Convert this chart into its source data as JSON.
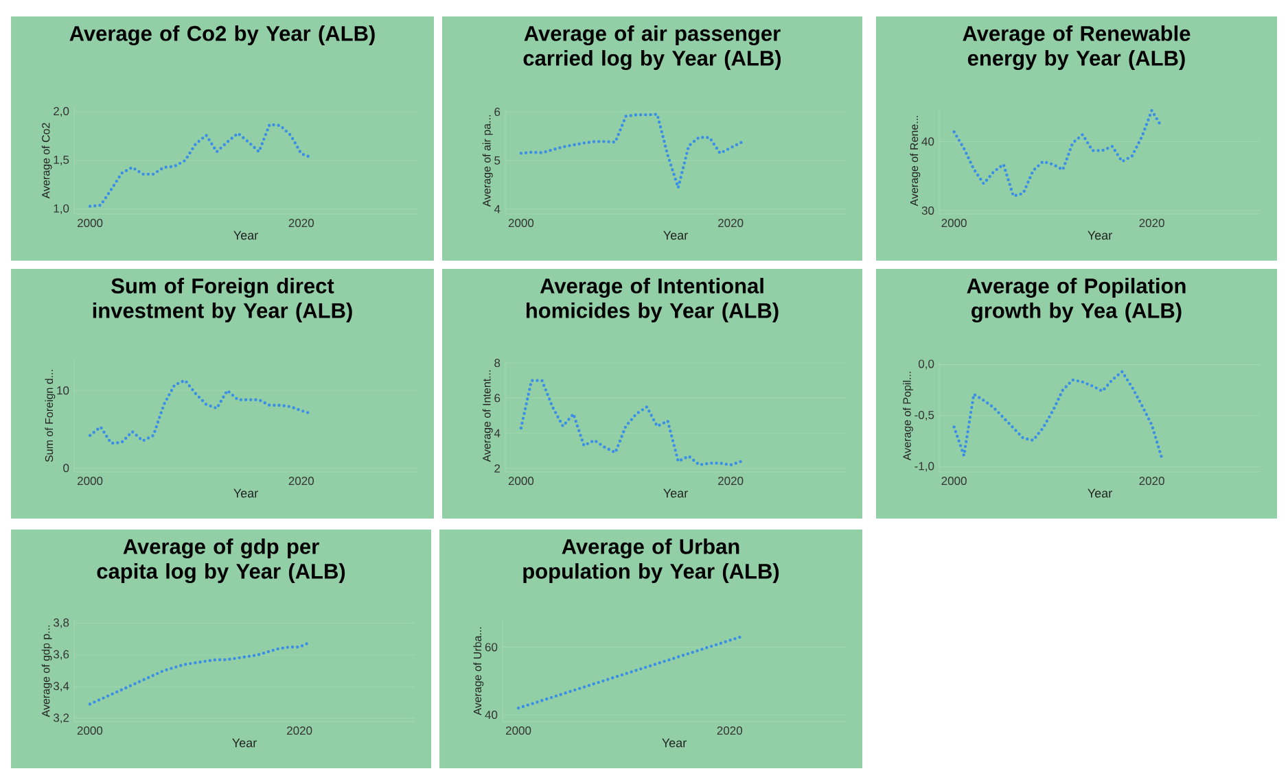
{
  "chart_data": [
    {
      "type": "line",
      "title": "Average of Co2 by Year (ALB)",
      "xlabel": "Year",
      "ylabel": "Average of Co2",
      "color": "#3a8ee6",
      "line_style": "dotted",
      "grid": "y",
      "xlim": [
        1998.5,
        2031
      ],
      "xticks": [
        2000,
        2020
      ],
      "ylim": [
        0.95,
        2.05
      ],
      "yticks": [
        {
          "value": 1.0,
          "label": "1,0"
        },
        {
          "value": 1.5,
          "label": "1,5"
        },
        {
          "value": 2.0,
          "label": "2,0"
        }
      ],
      "x": [
        2000,
        2001,
        2002,
        2003,
        2004,
        2005,
        2006,
        2007,
        2008,
        2009,
        2010,
        2011,
        2012,
        2013,
        2014,
        2015,
        2016,
        2017,
        2018,
        2019,
        2020,
        2021
      ],
      "values": [
        1.03,
        1.04,
        1.2,
        1.37,
        1.43,
        1.36,
        1.36,
        1.43,
        1.44,
        1.5,
        1.67,
        1.76,
        1.59,
        1.69,
        1.78,
        1.69,
        1.59,
        1.87,
        1.86,
        1.76,
        1.57,
        1.53
      ]
    },
    {
      "type": "line",
      "title": "Average of air passenger carried log by Year (ALB)",
      "xlabel": "Year",
      "ylabel": "Average of air pa...",
      "color": "#3a8ee6",
      "line_style": "dotted",
      "grid": "y",
      "xlim": [
        1998.5,
        2031
      ],
      "xticks": [
        2000,
        2020
      ],
      "ylim": [
        3.9,
        6.1
      ],
      "yticks": [
        4,
        5,
        6
      ],
      "x": [
        2000,
        2001,
        2002,
        2003,
        2004,
        2005,
        2006,
        2007,
        2008,
        2009,
        2010,
        2011,
        2012,
        2013,
        2014,
        2015,
        2016,
        2017,
        2018,
        2019,
        2020,
        2021
      ],
      "values": [
        5.15,
        5.17,
        5.16,
        5.22,
        5.28,
        5.32,
        5.36,
        5.39,
        5.39,
        5.38,
        5.91,
        5.94,
        5.94,
        5.95,
        5.11,
        4.44,
        5.3,
        5.48,
        5.47,
        5.15,
        5.26,
        5.37
      ]
    },
    {
      "type": "line",
      "title": "Average of Renewable energy by Year (ALB)",
      "xlabel": "Year",
      "ylabel": "Average of Rene...",
      "color": "#3a8ee6",
      "line_style": "dotted",
      "grid": "y",
      "xlim": [
        1998.5,
        2031
      ],
      "xticks": [
        2000,
        2020
      ],
      "ylim": [
        29.5,
        45
      ],
      "yticks": [
        30,
        40
      ],
      "x": [
        2000,
        2001,
        2002,
        2003,
        2004,
        2005,
        2006,
        2007,
        2008,
        2009,
        2010,
        2011,
        2012,
        2013,
        2014,
        2015,
        2016,
        2017,
        2018,
        2019,
        2020,
        2021
      ],
      "values": [
        41.4,
        39.0,
        36.0,
        33.9,
        35.6,
        36.7,
        32.1,
        32.5,
        35.8,
        37.1,
        36.7,
        35.9,
        39.8,
        41.0,
        38.7,
        38.7,
        39.3,
        37.1,
        37.9,
        40.7,
        44.5,
        42.1
      ]
    },
    {
      "type": "line",
      "title": "Sum of Foreign direct investment by Year (ALB)",
      "xlabel": "Year",
      "ylabel": "Sum of Foreign d...",
      "color": "#3a8ee6",
      "line_style": "dotted",
      "grid": "y",
      "xlim": [
        1998.5,
        2031
      ],
      "xticks": [
        2000,
        2020
      ],
      "ylim": [
        -0.5,
        14
      ],
      "yticks": [
        0,
        10
      ],
      "x": [
        2000,
        2001,
        2002,
        2003,
        2004,
        2005,
        2006,
        2007,
        2008,
        2009,
        2010,
        2011,
        2012,
        2013,
        2014,
        2015,
        2016,
        2017,
        2018,
        2019,
        2020,
        2021
      ],
      "values": [
        4.2,
        5.3,
        3.2,
        3.3,
        4.7,
        3.5,
        4.2,
        8.2,
        10.7,
        11.3,
        9.6,
        8.2,
        7.7,
        10.0,
        8.8,
        8.8,
        8.8,
        8.1,
        8.1,
        7.9,
        7.4,
        7.0
      ]
    },
    {
      "type": "line",
      "title": "Average of Intentional homicides by Year (ALB)",
      "xlabel": "Year",
      "ylabel": "Average of Intent...",
      "color": "#3a8ee6",
      "line_style": "dotted",
      "grid": "y",
      "xlim": [
        1998.5,
        2031
      ],
      "xticks": [
        2000,
        2020
      ],
      "ylim": [
        1.8,
        8.2
      ],
      "yticks": [
        2,
        4,
        6,
        8
      ],
      "x": [
        2000,
        2001,
        2002,
        2003,
        2004,
        2005,
        2006,
        2007,
        2008,
        2009,
        2010,
        2011,
        2012,
        2013,
        2014,
        2015,
        2016,
        2017,
        2018,
        2019,
        2020,
        2021
      ],
      "values": [
        4.3,
        7.0,
        7.0,
        5.5,
        4.4,
        5.1,
        3.3,
        3.6,
        3.2,
        2.9,
        4.4,
        5.1,
        5.5,
        4.4,
        4.7,
        2.4,
        2.7,
        2.2,
        2.3,
        2.3,
        2.2,
        2.4
      ]
    },
    {
      "type": "line",
      "title": "Average of Popilation growth by Yea (ALB)",
      "xlabel": "Year",
      "ylabel": "Average of Popil...",
      "color": "#3a8ee6",
      "line_style": "dotted",
      "grid": "y",
      "xlim": [
        1998.5,
        2031
      ],
      "xticks": [
        2000,
        2020
      ],
      "ylim": [
        -1.05,
        0.05
      ],
      "yticks": [
        {
          "value": -1.0,
          "label": "-1,0"
        },
        {
          "value": -0.5,
          "label": "-0,5"
        },
        {
          "value": 0.0,
          "label": "0,0"
        }
      ],
      "x": [
        2000,
        2001,
        2002,
        2003,
        2004,
        2005,
        2006,
        2007,
        2008,
        2009,
        2010,
        2011,
        2012,
        2013,
        2014,
        2015,
        2016,
        2017,
        2018,
        2019,
        2020,
        2021
      ],
      "values": [
        -0.61,
        -0.89,
        -0.29,
        -0.35,
        -0.42,
        -0.52,
        -0.62,
        -0.72,
        -0.74,
        -0.62,
        -0.45,
        -0.25,
        -0.15,
        -0.17,
        -0.21,
        -0.26,
        -0.15,
        -0.07,
        -0.22,
        -0.4,
        -0.59,
        -0.91
      ]
    },
    {
      "type": "line",
      "title": "Average of gdp per capita log by Year (ALB)",
      "xlabel": "Year",
      "ylabel": "Average of gdp p...",
      "color": "#3a8ee6",
      "line_style": "dotted",
      "grid": "y",
      "xlim": [
        1998.5,
        2031
      ],
      "xticks": [
        2000,
        2020
      ],
      "ylim": [
        3.18,
        3.82
      ],
      "yticks": [
        {
          "value": 3.2,
          "label": "3,2"
        },
        {
          "value": 3.4,
          "label": "3,4"
        },
        {
          "value": 3.6,
          "label": "3,6"
        },
        {
          "value": 3.8,
          "label": "3,8"
        }
      ],
      "x": [
        2000,
        2001,
        2002,
        2003,
        2004,
        2005,
        2006,
        2007,
        2008,
        2009,
        2010,
        2011,
        2012,
        2013,
        2014,
        2015,
        2016,
        2017,
        2018,
        2019,
        2020,
        2021
      ],
      "values": [
        3.29,
        3.32,
        3.35,
        3.38,
        3.41,
        3.44,
        3.47,
        3.5,
        3.52,
        3.54,
        3.55,
        3.56,
        3.57,
        3.57,
        3.58,
        3.59,
        3.6,
        3.62,
        3.64,
        3.65,
        3.65,
        3.68
      ]
    },
    {
      "type": "line",
      "title": "Average of Urban population by Year (ALB)",
      "xlabel": "Year",
      "ylabel": "Average of Urba...",
      "color": "#3a8ee6",
      "line_style": "dotted",
      "grid": "y",
      "xlim": [
        1998.5,
        2031
      ],
      "xticks": [
        2000,
        2020
      ],
      "ylim": [
        38,
        68
      ],
      "yticks": [
        40,
        60
      ],
      "x": [
        2000,
        2001,
        2002,
        2003,
        2004,
        2005,
        2006,
        2007,
        2008,
        2009,
        2010,
        2011,
        2012,
        2013,
        2014,
        2015,
        2016,
        2017,
        2018,
        2019,
        2020,
        2021
      ],
      "values": [
        42,
        43,
        44,
        45,
        46,
        47,
        48,
        49,
        50,
        51,
        52,
        53,
        54,
        55,
        56,
        57,
        58,
        59,
        60,
        61,
        62,
        63
      ]
    }
  ]
}
